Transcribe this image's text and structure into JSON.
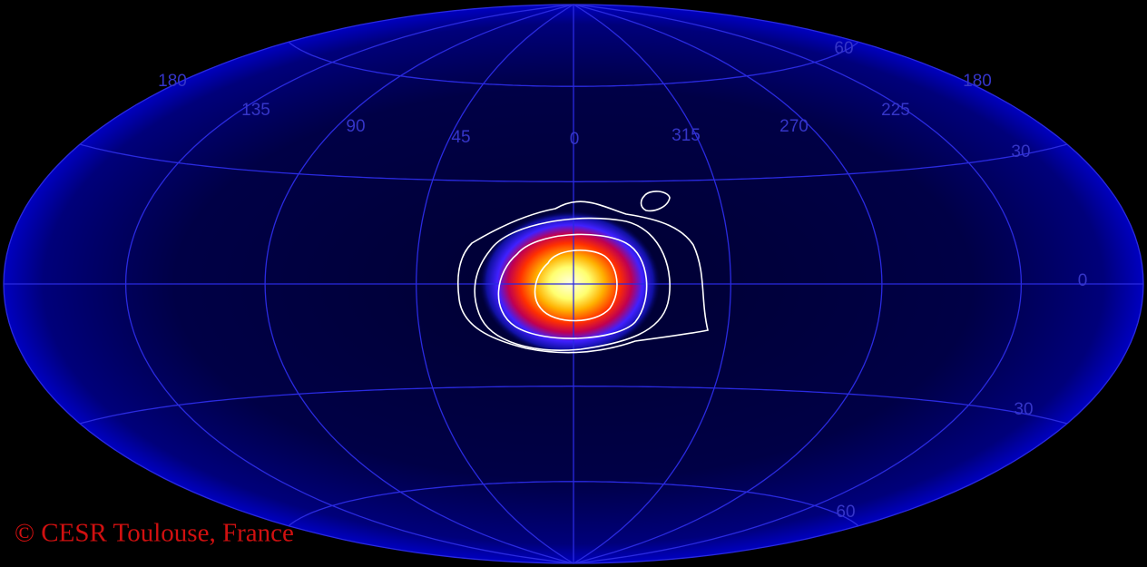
{
  "longitude_labels": [
    "180",
    "135",
    "90",
    "45",
    "0",
    "315",
    "270",
    "225",
    "180"
  ],
  "latitude_labels": [
    "60",
    "30",
    "0",
    "30",
    "60"
  ],
  "credit": "© CESR Toulouse, France"
}
